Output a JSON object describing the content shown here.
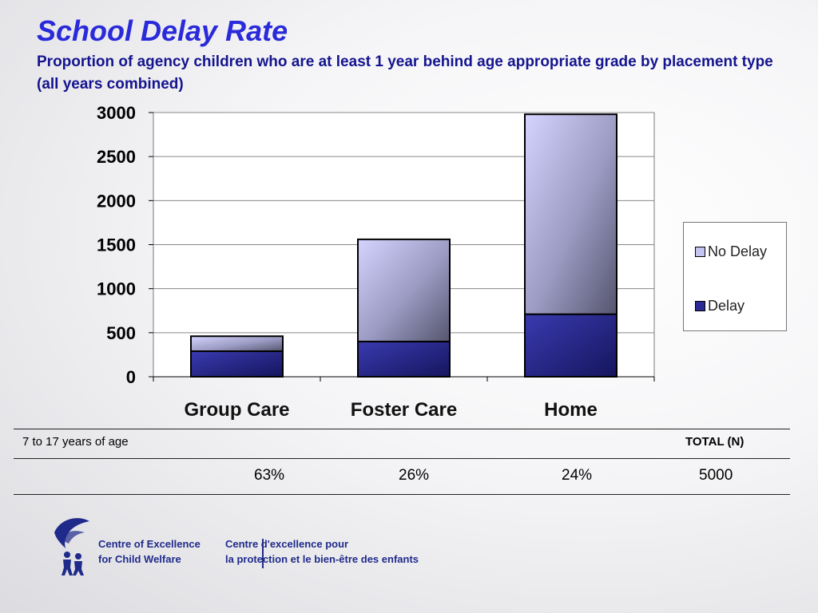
{
  "header": {
    "title": "School Delay Rate",
    "subtitle": "Proportion of agency children who are at least 1 year behind age appropriate grade by placement type (all years combined)"
  },
  "chart_data": {
    "type": "bar",
    "stacked": true,
    "categories": [
      "Group Care",
      "Foster Care",
      "Home"
    ],
    "series": [
      {
        "name": "Delay",
        "values": [
          290,
          400,
          710
        ],
        "color": "#2b2b95"
      },
      {
        "name": "No Delay",
        "values": [
          170,
          1160,
          2270
        ],
        "color": "#c4c4f2"
      }
    ],
    "ylim": [
      0,
      3000
    ],
    "yticks": [
      "0",
      "500",
      "1000",
      "1500",
      "2000",
      "2500",
      "3000"
    ],
    "grid": true,
    "legend": "right",
    "legend_order": [
      "No Delay",
      "Delay"
    ]
  },
  "table": {
    "row_label": "7 to 17 years of age",
    "total_header": "TOTAL (N)",
    "values": [
      "63%",
      "26%",
      "24%"
    ],
    "total": "5000"
  },
  "logo": {
    "en_line1": "Centre of Excellence",
    "en_line2": "for Child Welfare",
    "fr_line1": "Centre d'excellence pour",
    "fr_line2": "la protection et le bien-être des enfants"
  }
}
